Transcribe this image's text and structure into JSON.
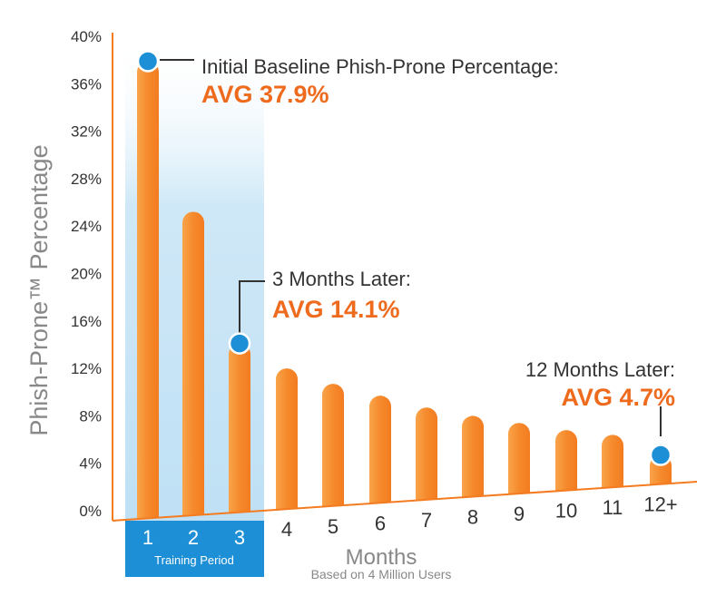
{
  "chart_data": {
    "type": "bar",
    "categories": [
      "1",
      "2",
      "3",
      "4",
      "5",
      "6",
      "7",
      "8",
      "9",
      "10",
      "11",
      "12+"
    ],
    "values": [
      37.9,
      25.2,
      14.1,
      12.0,
      10.7,
      9.7,
      8.7,
      8.0,
      7.4,
      6.8,
      6.4,
      4.7
    ],
    "ylabel": "Phish-Prone™ Percentage",
    "xlabel": "Months",
    "xlabel_sub": "Based on 4 Million Users",
    "ylim": [
      0,
      40
    ],
    "yticks": [
      "0%",
      "4%",
      "8%",
      "12%",
      "16%",
      "20%",
      "24%",
      "28%",
      "32%",
      "36%",
      "40%"
    ],
    "highlight": {
      "label": "Training Period",
      "categories": [
        "1",
        "2",
        "3"
      ]
    },
    "annotations": [
      {
        "category": "1",
        "value": 37.9,
        "title": "Initial Baseline Phish-Prone Percentage:",
        "avg": "AVG 37.9%"
      },
      {
        "category": "3",
        "value": 14.1,
        "title": "3 Months Later:",
        "avg": "AVG 14.1%"
      },
      {
        "category": "12+",
        "value": 4.7,
        "title": "12 Months Later:",
        "avg": "AVG 4.7%"
      }
    ]
  },
  "colors": {
    "bar": "#f47b20",
    "bar_light": "#f9a34a",
    "accent_text": "#ee6a1d",
    "marker": "#1d8fd6",
    "training_band": "#cfe8f7",
    "training_box": "#1d8fd6",
    "axis": "#f47b20"
  }
}
